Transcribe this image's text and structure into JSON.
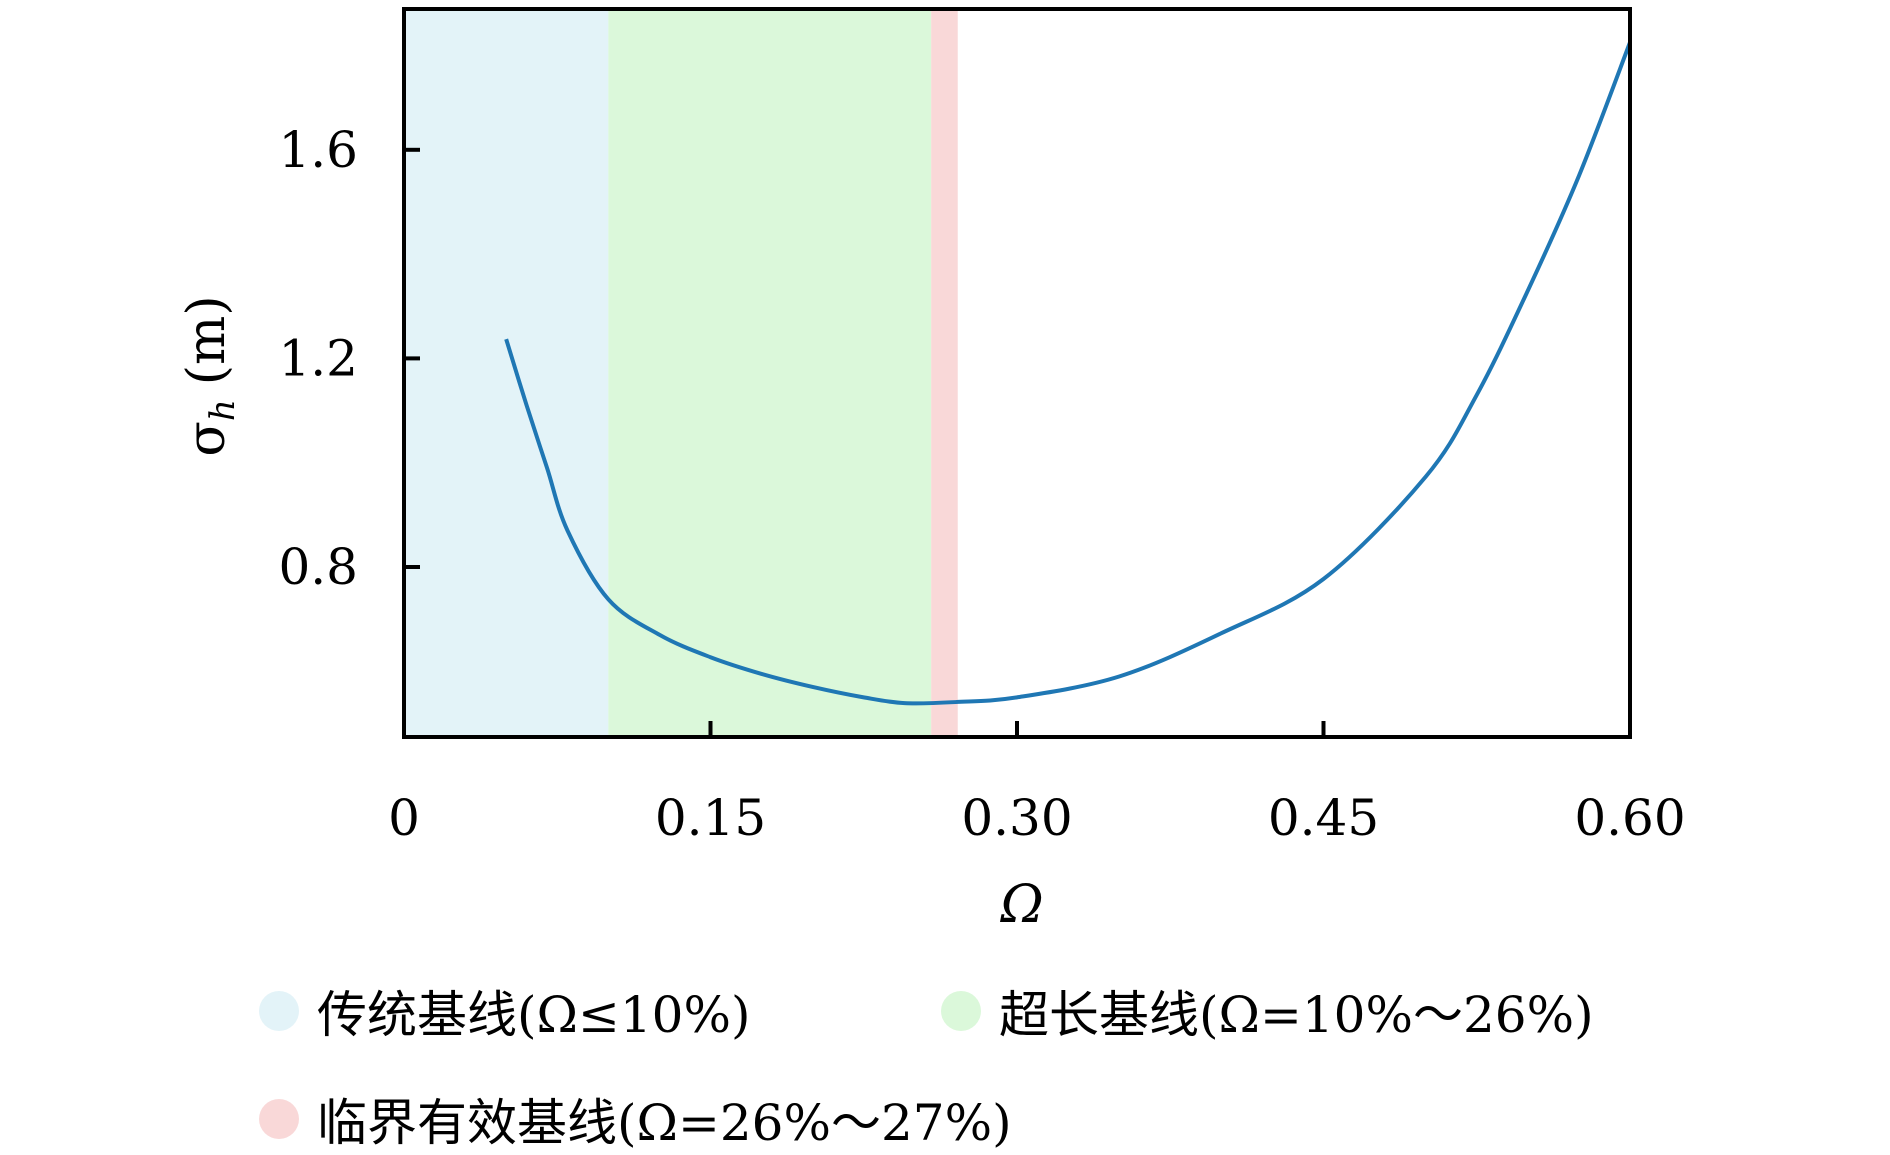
{
  "chart_data": {
    "type": "line",
    "xlabel": "Ω",
    "ylabel": "σ_h (m)",
    "ylabel_main": "σ",
    "ylabel_sub": "h",
    "ylabel_unit": "(m)",
    "xlim": [
      0,
      0.6
    ],
    "ylim": [
      0.474,
      1.87
    ],
    "xticks": [
      0,
      0.15,
      0.3,
      0.45,
      0.6
    ],
    "xtick_labels": [
      "0",
      "0.15",
      "0.30",
      "0.45",
      "0.60"
    ],
    "yticks": [
      0.8,
      1.2,
      1.6
    ],
    "ytick_labels": [
      "0.8",
      "1.2",
      "1.6"
    ],
    "grid": false,
    "legend_placement": "bottom",
    "line_color": "#1f77b4",
    "series": [
      {
        "x": [
          0.05,
          0.06,
          0.07,
          0.08,
          0.1,
          0.125,
          0.15,
          0.175,
          0.2,
          0.225,
          0.245,
          0.27,
          0.3,
          0.35,
          0.4,
          0.45,
          0.5,
          0.525,
          0.55,
          0.575,
          0.6
        ],
        "y": [
          1.237,
          1.11,
          0.99,
          0.87,
          0.738,
          0.67,
          0.627,
          0.595,
          0.57,
          0.55,
          0.539,
          0.541,
          0.55,
          0.59,
          0.673,
          0.777,
          0.973,
          1.13,
          1.33,
          1.55,
          1.806
        ]
      }
    ],
    "bands": [
      {
        "label": "传统基线(Ω≤10%)",
        "x0": 0,
        "x1": 0.1,
        "color": "#e3f3f8"
      },
      {
        "label": "超长基线(Ω=10%～26%)",
        "x0": 0.1,
        "x1": 0.258,
        "color": "#dbf8da"
      },
      {
        "label": "临界有效基线(Ω=26%～27%)",
        "x0": 0.258,
        "x1": 0.271,
        "color": "#f9d8d8"
      }
    ]
  }
}
